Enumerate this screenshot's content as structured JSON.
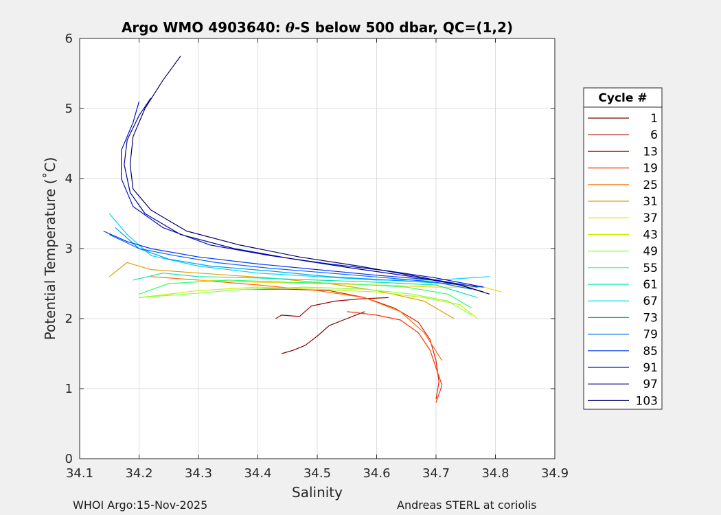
{
  "chart_data": {
    "type": "line",
    "title": {
      "prefix": "Argo WMO 4903640: ",
      "theta": "θ",
      "suffix": "-S below 500 dbar,  QC=(1,2)"
    },
    "xlabel": "Salinity",
    "ylabel": "Potential Temperature (˚C)",
    "xlim": [
      34.1,
      34.9
    ],
    "ylim": [
      0,
      6
    ],
    "xticks": [
      "34.1",
      "34.2",
      "34.3",
      "34.4",
      "34.5",
      "34.6",
      "34.7",
      "34.8",
      "34.9"
    ],
    "yticks": [
      "0",
      "1",
      "2",
      "3",
      "4",
      "5",
      "6"
    ],
    "grid": true,
    "legend": {
      "title": "Cycle #",
      "placement": "outside-right",
      "entries": [
        {
          "label": "1",
          "color": "#800000"
        },
        {
          "label": "6",
          "color": "#a00000"
        },
        {
          "label": "13",
          "color": "#d42000"
        },
        {
          "label": "19",
          "color": "#ff3000"
        },
        {
          "label": "25",
          "color": "#ff6a00"
        },
        {
          "label": "31",
          "color": "#e49c00"
        },
        {
          "label": "37",
          "color": "#ffd500"
        },
        {
          "label": "43",
          "color": "#c8f000"
        },
        {
          "label": "49",
          "color": "#80ff40"
        },
        {
          "label": "55",
          "color": "#30ff6a"
        },
        {
          "label": "61",
          "color": "#00e6b0"
        },
        {
          "label": "67",
          "color": "#00d0ff"
        },
        {
          "label": "73",
          "color": "#00a0e8"
        },
        {
          "label": "79",
          "color": "#0064ff"
        },
        {
          "label": "85",
          "color": "#0030f0"
        },
        {
          "label": "91",
          "color": "#0010c0"
        },
        {
          "label": "97",
          "color": "#000090"
        },
        {
          "label": "103",
          "color": "#00006a"
        }
      ]
    },
    "series": [
      {
        "name": "1",
        "color": "#800000",
        "x": [
          34.44,
          34.46,
          34.48,
          34.5,
          34.52,
          34.55,
          34.58
        ],
        "y": [
          1.5,
          1.55,
          1.62,
          1.75,
          1.9,
          2.0,
          2.1
        ]
      },
      {
        "name": "6",
        "color": "#a00000",
        "x": [
          34.43,
          34.44,
          34.47,
          34.49,
          34.53,
          34.57,
          34.62
        ],
        "y": [
          2.0,
          2.05,
          2.03,
          2.18,
          2.25,
          2.28,
          2.3
        ]
      },
      {
        "name": "13",
        "color": "#d42000",
        "x": [
          34.38,
          34.45,
          34.52,
          34.58,
          34.63,
          34.67,
          34.69,
          34.7,
          34.705,
          34.7
        ],
        "y": [
          2.42,
          2.42,
          2.4,
          2.3,
          2.15,
          1.95,
          1.7,
          1.4,
          1.1,
          0.85
        ]
      },
      {
        "name": "19",
        "color": "#ff3000",
        "x": [
          34.55,
          34.6,
          34.64,
          34.67,
          34.69,
          34.7,
          34.71,
          34.7
        ],
        "y": [
          2.1,
          2.05,
          1.98,
          1.8,
          1.55,
          1.3,
          1.05,
          0.8
        ]
      },
      {
        "name": "25",
        "color": "#ff6a00",
        "x": [
          34.22,
          34.3,
          34.4,
          34.5,
          34.58,
          34.64,
          34.68,
          34.71
        ],
        "y": [
          2.6,
          2.55,
          2.48,
          2.4,
          2.3,
          2.1,
          1.8,
          1.4
        ]
      },
      {
        "name": "31",
        "color": "#e49c00",
        "x": [
          34.15,
          34.18,
          34.22,
          34.3,
          34.42,
          34.52,
          34.6,
          34.68,
          34.73
        ],
        "y": [
          2.6,
          2.8,
          2.7,
          2.65,
          2.58,
          2.5,
          2.4,
          2.25,
          2.0
        ]
      },
      {
        "name": "37",
        "color": "#ffd500",
        "x": [
          34.3,
          34.4,
          34.5,
          34.6,
          34.7,
          34.78,
          34.81
        ],
        "y": [
          2.55,
          2.52,
          2.5,
          2.48,
          2.45,
          2.45,
          2.38
        ]
      },
      {
        "name": "43",
        "color": "#c8f000",
        "x": [
          34.2,
          34.3,
          34.4,
          34.5,
          34.6,
          34.68,
          34.74,
          34.77
        ],
        "y": [
          2.3,
          2.4,
          2.45,
          2.42,
          2.38,
          2.3,
          2.2,
          2.0
        ]
      },
      {
        "name": "49",
        "color": "#80ff40",
        "x": [
          34.2,
          34.28,
          34.38,
          34.48,
          34.58,
          34.66,
          34.72,
          34.76
        ],
        "y": [
          2.3,
          2.35,
          2.42,
          2.45,
          2.42,
          2.35,
          2.25,
          2.05
        ]
      },
      {
        "name": "55",
        "color": "#30ff6a",
        "x": [
          34.2,
          34.25,
          34.35,
          34.45,
          34.55,
          34.65,
          34.72,
          34.76
        ],
        "y": [
          2.35,
          2.5,
          2.55,
          2.52,
          2.5,
          2.45,
          2.35,
          2.15
        ]
      },
      {
        "name": "61",
        "color": "#00e6b0",
        "x": [
          34.19,
          34.24,
          34.3,
          34.4,
          34.5,
          34.6,
          34.7,
          34.77
        ],
        "y": [
          2.55,
          2.65,
          2.6,
          2.58,
          2.55,
          2.52,
          2.48,
          2.3
        ]
      },
      {
        "name": "67",
        "color": "#00d0ff",
        "x": [
          34.15,
          34.18,
          34.22,
          34.3,
          34.4,
          34.5,
          34.6,
          34.7,
          34.79
        ],
        "y": [
          3.5,
          3.2,
          2.9,
          2.75,
          2.65,
          2.6,
          2.55,
          2.55,
          2.6
        ]
      },
      {
        "name": "73",
        "color": "#00a0e8",
        "x": [
          34.16,
          34.2,
          34.25,
          34.32,
          34.42,
          34.52,
          34.62,
          34.72,
          34.78
        ],
        "y": [
          3.3,
          3.0,
          2.85,
          2.75,
          2.68,
          2.6,
          2.55,
          2.5,
          2.45
        ]
      },
      {
        "name": "79",
        "color": "#0064ff",
        "x": [
          34.15,
          34.2,
          34.26,
          34.33,
          34.42,
          34.52,
          34.62,
          34.7,
          34.76
        ],
        "y": [
          3.2,
          3.0,
          2.9,
          2.8,
          2.72,
          2.65,
          2.58,
          2.52,
          2.42
        ]
      },
      {
        "name": "85",
        "color": "#0030f0",
        "x": [
          34.14,
          34.18,
          34.22,
          34.3,
          34.4,
          34.5,
          34.6,
          34.7,
          34.77
        ],
        "y": [
          3.25,
          3.1,
          3.0,
          2.88,
          2.78,
          2.7,
          2.62,
          2.55,
          2.45
        ]
      },
      {
        "name": "91",
        "color": "#0010c0",
        "x": [
          34.2,
          34.19,
          34.17,
          34.17,
          34.19,
          34.24,
          34.32,
          34.42,
          34.52,
          34.62,
          34.7,
          34.78
        ],
        "y": [
          5.1,
          4.8,
          4.4,
          4.0,
          3.6,
          3.3,
          3.05,
          2.9,
          2.78,
          2.68,
          2.58,
          2.45
        ]
      },
      {
        "name": "97",
        "color": "#000090",
        "x": [
          34.22,
          34.2,
          34.18,
          34.175,
          34.185,
          34.21,
          34.27,
          34.36,
          34.46,
          34.56,
          34.66,
          34.74,
          34.78
        ],
        "y": [
          5.15,
          4.9,
          4.55,
          4.2,
          3.8,
          3.5,
          3.2,
          3.0,
          2.85,
          2.72,
          2.6,
          2.48,
          2.38
        ]
      },
      {
        "name": "103",
        "color": "#00006a",
        "x": [
          34.27,
          34.24,
          34.21,
          34.19,
          34.185,
          34.19,
          34.22,
          34.28,
          34.37,
          34.47,
          34.57,
          34.67,
          34.74,
          34.79
        ],
        "y": [
          5.75,
          5.4,
          5.0,
          4.6,
          4.2,
          3.85,
          3.55,
          3.25,
          3.05,
          2.88,
          2.75,
          2.6,
          2.48,
          2.35
        ]
      }
    ]
  },
  "footer": {
    "left": "WHOI Argo:15-Nov-2025",
    "right": "Andreas STERL at coriolis"
  }
}
